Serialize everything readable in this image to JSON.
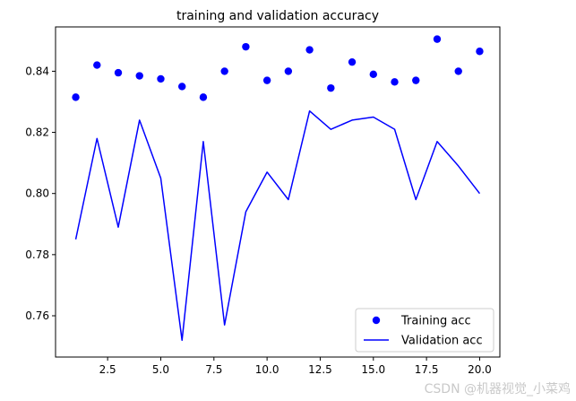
{
  "chart_data": {
    "type": "line",
    "title": "training and validation accuracy",
    "xlabel": "",
    "ylabel": "",
    "xlim": [
      0.05,
      20.95
    ],
    "ylim": [
      0.7465,
      0.8545
    ],
    "xticks": [
      2.5,
      5.0,
      7.5,
      10.0,
      12.5,
      15.0,
      17.5,
      20.0
    ],
    "xtick_labels": [
      "2.5",
      "5.0",
      "7.5",
      "10.0",
      "12.5",
      "15.0",
      "17.5",
      "20.0"
    ],
    "yticks": [
      0.76,
      0.78,
      0.8,
      0.82,
      0.84
    ],
    "ytick_labels": [
      "0.76",
      "0.78",
      "0.80",
      "0.82",
      "0.84"
    ],
    "grid": false,
    "legend_position": "lower-right",
    "series": [
      {
        "name": "Training acc",
        "style": "markers",
        "color": "#0000ff",
        "x": [
          1,
          2,
          3,
          4,
          5,
          6,
          7,
          8,
          9,
          10,
          11,
          12,
          13,
          14,
          15,
          16,
          17,
          18,
          19,
          20
        ],
        "values": [
          0.8315,
          0.842,
          0.8395,
          0.8385,
          0.8375,
          0.835,
          0.8315,
          0.84,
          0.848,
          0.837,
          0.84,
          0.847,
          0.8345,
          0.843,
          0.839,
          0.8365,
          0.837,
          0.8505,
          0.84,
          0.8465
        ]
      },
      {
        "name": "Validation acc",
        "style": "line",
        "color": "#0000ff",
        "x": [
          1,
          2,
          3,
          4,
          5,
          6,
          7,
          8,
          9,
          10,
          11,
          12,
          13,
          14,
          15,
          16,
          17,
          18,
          19,
          20
        ],
        "values": [
          0.785,
          0.818,
          0.789,
          0.824,
          0.805,
          0.752,
          0.817,
          0.757,
          0.794,
          0.807,
          0.798,
          0.827,
          0.821,
          0.824,
          0.825,
          0.821,
          0.798,
          0.817,
          0.809,
          0.8
        ]
      }
    ]
  },
  "watermark": "CSDN @机器视觉_小菜鸡"
}
